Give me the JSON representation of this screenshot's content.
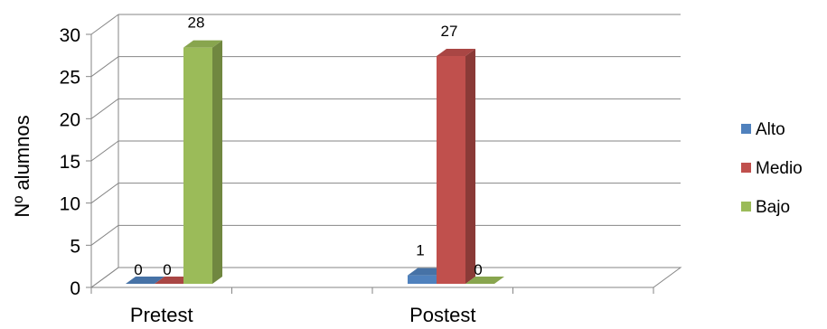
{
  "chart_data": {
    "type": "bar",
    "style": "3d-clustered-column",
    "categories": [
      "Pretest",
      "Postest"
    ],
    "series": [
      {
        "name": "Alto",
        "values": [
          0,
          1
        ],
        "color": "#4F81BD"
      },
      {
        "name": "Medio",
        "values": [
          0,
          27
        ],
        "color": "#C0504D"
      },
      {
        "name": "Bajo",
        "values": [
          28,
          0
        ],
        "color": "#9BBB59"
      }
    ],
    "ylabel": "Nº alumnos",
    "ylim": [
      0,
      30
    ],
    "yticks": [
      "0",
      "5",
      "10",
      "15",
      "20",
      "25",
      "30"
    ],
    "grid": true,
    "legend_position": "right"
  }
}
